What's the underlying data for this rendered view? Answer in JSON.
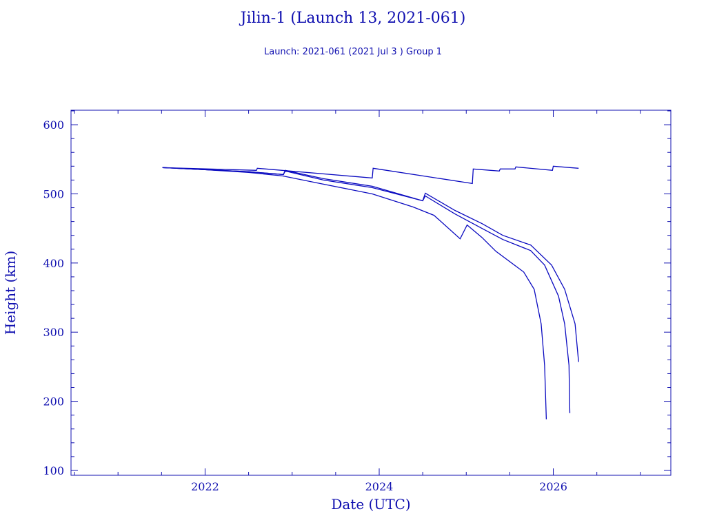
{
  "chart_data": {
    "type": "line",
    "title": "Jilin-1 (Launch 13, 2021-061)",
    "subtitle": "Launch: 2021-061  (2021 Jul  3 )  Group 1",
    "xlabel": "Date (UTC)",
    "ylabel": "Height (km)",
    "xlim": [
      2020.46,
      2027.35
    ],
    "ylim": [
      93,
      621
    ],
    "x_ticks": [
      2022,
      2024,
      2026
    ],
    "x_tick_labels": [
      "2022",
      "2024",
      "2026"
    ],
    "y_ticks": [
      100,
      200,
      300,
      400,
      500,
      600
    ],
    "y_tick_labels": [
      "100",
      "200",
      "300",
      "400",
      "500",
      "600"
    ],
    "grid": false,
    "line_color": "#0a0ac0",
    "axis_color": "#1010b0",
    "series": [
      {
        "x": [
          2021.51,
          2022.59,
          2022.6,
          2023.92,
          2023.93,
          2025.07,
          2025.08,
          2025.38,
          2025.39,
          2025.56,
          2025.57,
          2025.99,
          2026.0,
          2026.29
        ],
        "y": [
          538,
          534,
          537,
          523,
          537,
          515,
          536,
          533,
          536,
          536,
          539,
          534,
          540,
          537
        ]
      },
      {
        "x": [
          2021.51,
          2022.0,
          2022.5,
          2022.9,
          2022.92,
          2023.36,
          2023.92,
          2024.5,
          2024.53,
          2024.87,
          2025.18,
          2025.42,
          2025.74,
          2025.98,
          2026.13,
          2026.25,
          2026.29
        ],
        "y": [
          538,
          535,
          532,
          528,
          534,
          522,
          511,
          490,
          501,
          476,
          457,
          440,
          426,
          397,
          362,
          312,
          257
        ]
      },
      {
        "x": [
          2021.51,
          2022.0,
          2022.5,
          2022.9,
          2022.92,
          2023.36,
          2023.92,
          2024.5,
          2024.53,
          2024.87,
          2025.18,
          2025.42,
          2025.74,
          2025.9,
          2026.06,
          2026.13,
          2026.18,
          2026.19
        ],
        "y": [
          538,
          535,
          532,
          528,
          533,
          520,
          509,
          490,
          497,
          471,
          450,
          434,
          418,
          397,
          352,
          312,
          252,
          183
        ]
      },
      {
        "x": [
          2021.51,
          2022.0,
          2022.5,
          2022.89,
          2023.28,
          2023.92,
          2024.39,
          2024.63,
          2024.93,
          2025.01,
          2025.18,
          2025.34,
          2025.66,
          2025.78,
          2025.86,
          2025.9,
          2025.92
        ],
        "y": [
          538,
          535,
          531,
          526,
          516,
          500,
          481,
          469,
          435,
          455,
          437,
          417,
          387,
          362,
          312,
          252,
          174
        ]
      }
    ]
  }
}
